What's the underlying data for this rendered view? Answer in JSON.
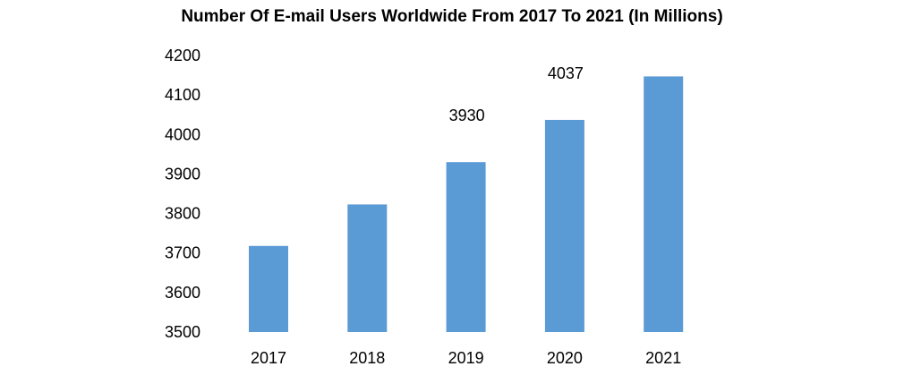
{
  "chart_data": {
    "type": "bar",
    "title": "Number Of E-mail Users Worldwide From 2017 To 2021 (In Millions)",
    "categories": [
      "2017",
      "2018",
      "2019",
      "2020",
      "2021"
    ],
    "values": [
      3718,
      3823,
      3930,
      4037,
      4147
    ],
    "data_labels": [
      null,
      null,
      "3930",
      "4037",
      null
    ],
    "xlabel": "",
    "ylabel": "",
    "ylim": [
      3500,
      4200
    ],
    "yticks": [
      "3500",
      "3600",
      "3700",
      "3800",
      "3900",
      "4000",
      "4100",
      "4200"
    ],
    "grid": false,
    "legend": "none",
    "bar_color": "#5b9bd5"
  }
}
